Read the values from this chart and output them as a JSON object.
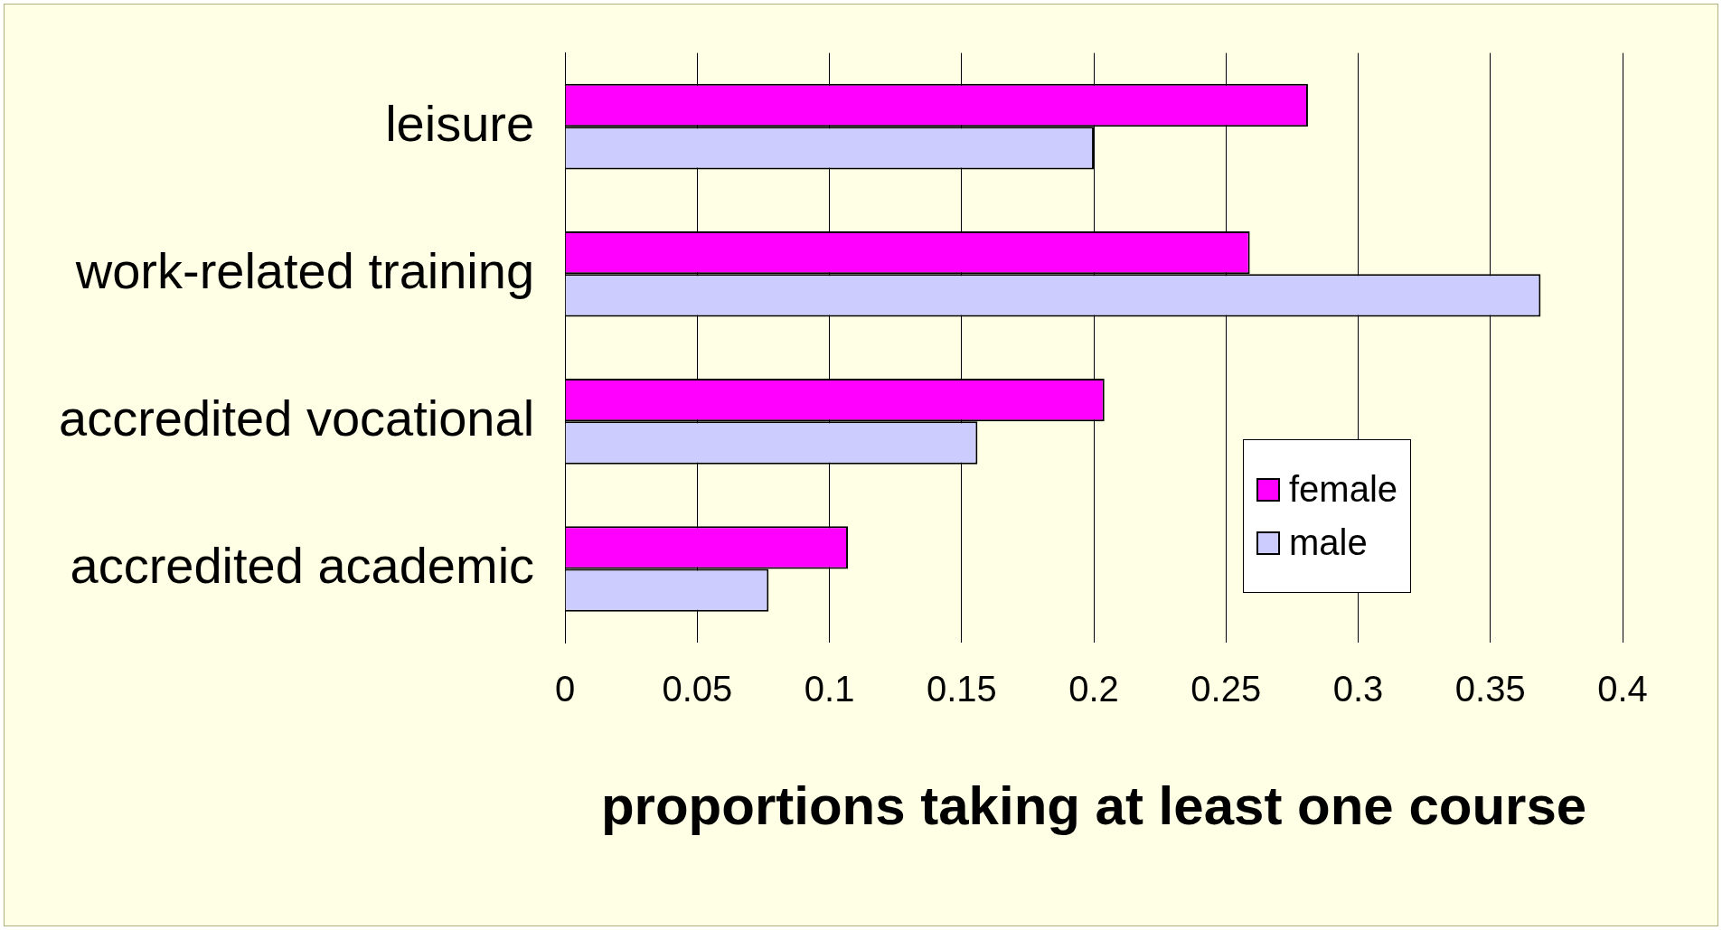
{
  "chart_data": {
    "type": "bar",
    "orientation": "horizontal",
    "xlabel": "proportions taking at least one course",
    "categories": [
      "leisure",
      "work-related training",
      "accredited vocational",
      "accredited academic"
    ],
    "series": [
      {
        "name": "female",
        "color": "#ff00ff",
        "values": [
          0.281,
          0.259,
          0.204,
          0.107
        ]
      },
      {
        "name": "male",
        "color": "#ccccff",
        "values": [
          0.2,
          0.369,
          0.156,
          0.077
        ]
      }
    ],
    "xlim": [
      0,
      0.4
    ],
    "xticks": [
      0,
      0.05,
      0.1,
      0.15,
      0.2,
      0.25,
      0.3,
      0.35,
      0.4
    ],
    "grid": "x",
    "legend": "bottom right"
  }
}
